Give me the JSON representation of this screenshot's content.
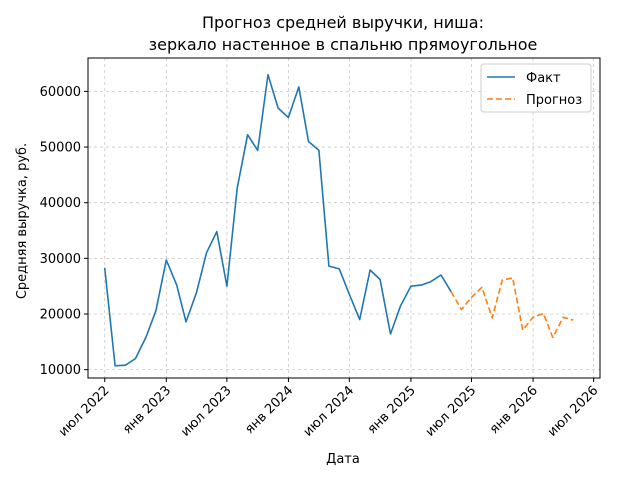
{
  "chart_data": {
    "type": "line",
    "title": [
      "Прогноз средней выручки, ниша:",
      "зеркало настенное в спальню прямоугольное"
    ],
    "xlabel": "Дата",
    "ylabel": "Средняя выручка, руб.",
    "ylim": [
      8500,
      66000
    ],
    "xlim": [
      "2022-05-12",
      "2026-07-20"
    ],
    "yticks": [
      10000,
      20000,
      30000,
      40000,
      50000,
      60000
    ],
    "xticks": [
      {
        "date": "2022-07-01",
        "label": "июл 2022"
      },
      {
        "date": "2023-01-01",
        "label": "янв 2023"
      },
      {
        "date": "2023-07-01",
        "label": "июл 2023"
      },
      {
        "date": "2024-01-01",
        "label": "янв 2024"
      },
      {
        "date": "2024-07-01",
        "label": "июл 2024"
      },
      {
        "date": "2025-01-01",
        "label": "янв 2025"
      },
      {
        "date": "2025-07-01",
        "label": "июл 2025"
      },
      {
        "date": "2026-01-01",
        "label": "янв 2026"
      },
      {
        "date": "2026-07-01",
        "label": "июл 2026"
      }
    ],
    "grid": true,
    "legend_position": "top-right",
    "series": [
      {
        "name": "Факт",
        "color": "#1f77b4",
        "style": "solid",
        "x": [
          "2022-07-01",
          "2022-08-01",
          "2022-09-01",
          "2022-10-01",
          "2022-11-01",
          "2022-12-01",
          "2023-01-01",
          "2023-02-01",
          "2023-03-01",
          "2023-04-01",
          "2023-05-01",
          "2023-06-01",
          "2023-07-01",
          "2023-08-01",
          "2023-09-01",
          "2023-10-01",
          "2023-11-01",
          "2023-12-01",
          "2024-01-01",
          "2024-02-01",
          "2024-03-01",
          "2024-04-01",
          "2024-05-01",
          "2024-06-01",
          "2024-07-01",
          "2024-08-01",
          "2024-09-01",
          "2024-10-01",
          "2024-11-01",
          "2024-12-01",
          "2025-01-01",
          "2025-02-01",
          "2025-03-01",
          "2025-04-01",
          "2025-05-01"
        ],
        "values": [
          28300,
          10700,
          10800,
          12000,
          15800,
          20600,
          29700,
          25200,
          18600,
          23800,
          31000,
          34800,
          25000,
          42600,
          52200,
          49400,
          63000,
          57000,
          55300,
          60800,
          51000,
          49400,
          28600,
          28100,
          23500,
          19000,
          27900,
          26200,
          16400,
          21500,
          25000,
          25200,
          25800,
          27000,
          24000
        ]
      },
      {
        "name": "Прогноз",
        "color": "#ff7f0e",
        "style": "dashed",
        "x": [
          "2025-05-01",
          "2025-06-01",
          "2025-07-01",
          "2025-08-01",
          "2025-09-01",
          "2025-10-01",
          "2025-11-01",
          "2025-12-01",
          "2026-01-01",
          "2026-02-01",
          "2026-03-01",
          "2026-04-01",
          "2026-05-01"
        ],
        "values": [
          24000,
          20800,
          23000,
          24800,
          19300,
          26100,
          26500,
          17100,
          19400,
          20100,
          15800,
          19400,
          18900
        ]
      }
    ]
  }
}
